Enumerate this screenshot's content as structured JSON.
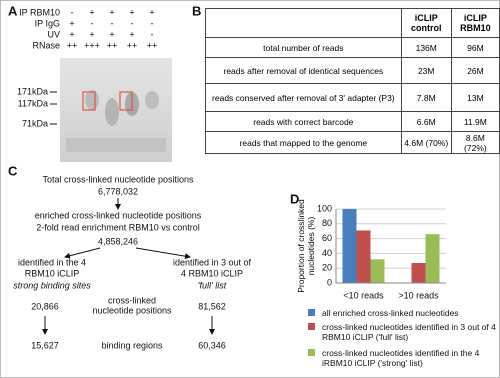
{
  "panel_a": {
    "label": "A",
    "conditions": [
      {
        "name": "IP RBM10",
        "marks": [
          "-",
          "+",
          "+",
          "+",
          "+"
        ]
      },
      {
        "name": "IP IgG",
        "marks": [
          "+",
          "-",
          "-",
          "-",
          "-"
        ]
      },
      {
        "name": "UV",
        "marks": [
          "+",
          "+",
          "+",
          "+",
          "-"
        ]
      },
      {
        "name": "RNase",
        "marks": [
          "++",
          "+++",
          "++",
          "++",
          "++"
        ]
      }
    ],
    "markers": [
      "171kDa",
      "117kDa",
      "71kDa"
    ]
  },
  "panel_b": {
    "label": "B",
    "table": {
      "header": [
        "iCLIP control",
        "iCLIP RBM10"
      ],
      "rows": [
        [
          "total number of reads",
          "136M",
          "96M"
        ],
        [
          "reads after removal of identical sequences",
          "23M",
          "26M"
        ],
        [
          "reads conserved after removal of 3' adapter (P3)",
          "7.8M",
          "13M"
        ],
        [
          "reads with correct barcode",
          "6.6M",
          "11.9M"
        ],
        [
          "reads that mapped to the genome",
          "4.6M (70%)",
          "8.6M (72%)"
        ]
      ]
    }
  },
  "panel_c": {
    "label": "C",
    "total": {
      "title": "Total cross-linked nucleotide positions",
      "count": "6,778,032"
    },
    "enriched": {
      "lines": [
        "enriched cross-linked nucleotide positions",
        "2-fold read enrichment RBM10 vs control"
      ],
      "count": "4,858,246"
    },
    "strong": {
      "lines": [
        "identified in the 4",
        "RBM10 iCLIP"
      ],
      "note": "strong binding sites",
      "positions": "20,866",
      "regions": "15,627"
    },
    "full": {
      "lines": [
        "identified in 3 out of",
        "4 RBM10 iCLIP"
      ],
      "note": "'full' list",
      "positions": "81,562",
      "regions": "60,346"
    },
    "row_labels": {
      "positions": [
        "cross-linked",
        "nucleotide positions"
      ],
      "regions": "binding regions"
    }
  },
  "chart_data": {
    "type": "bar",
    "label": "D",
    "y_label": "Proportion of crosslinked nucleotides (%)",
    "categories": [
      "<10 reads",
      ">10 reads"
    ],
    "series": [
      {
        "name": "all enriched cross-linked nucleotides",
        "color": "#4a7ebb",
        "values": [
          100,
          0
        ]
      },
      {
        "name": "cross-linked nucleotides identified in 3 out of 4 RBM10 iCLIP ('full' list)",
        "color": "#c0504d",
        "values": [
          71,
          27
        ]
      },
      {
        "name": "cross-linked nucleotides identified in the 4 iRBM10 iCLIP ('strong' list)",
        "color": "#9bbb59",
        "values": [
          32,
          66
        ]
      }
    ],
    "ylim": [
      0,
      100
    ],
    "yticks": [
      0,
      20,
      40,
      60,
      80,
      100
    ],
    "grid": true
  }
}
